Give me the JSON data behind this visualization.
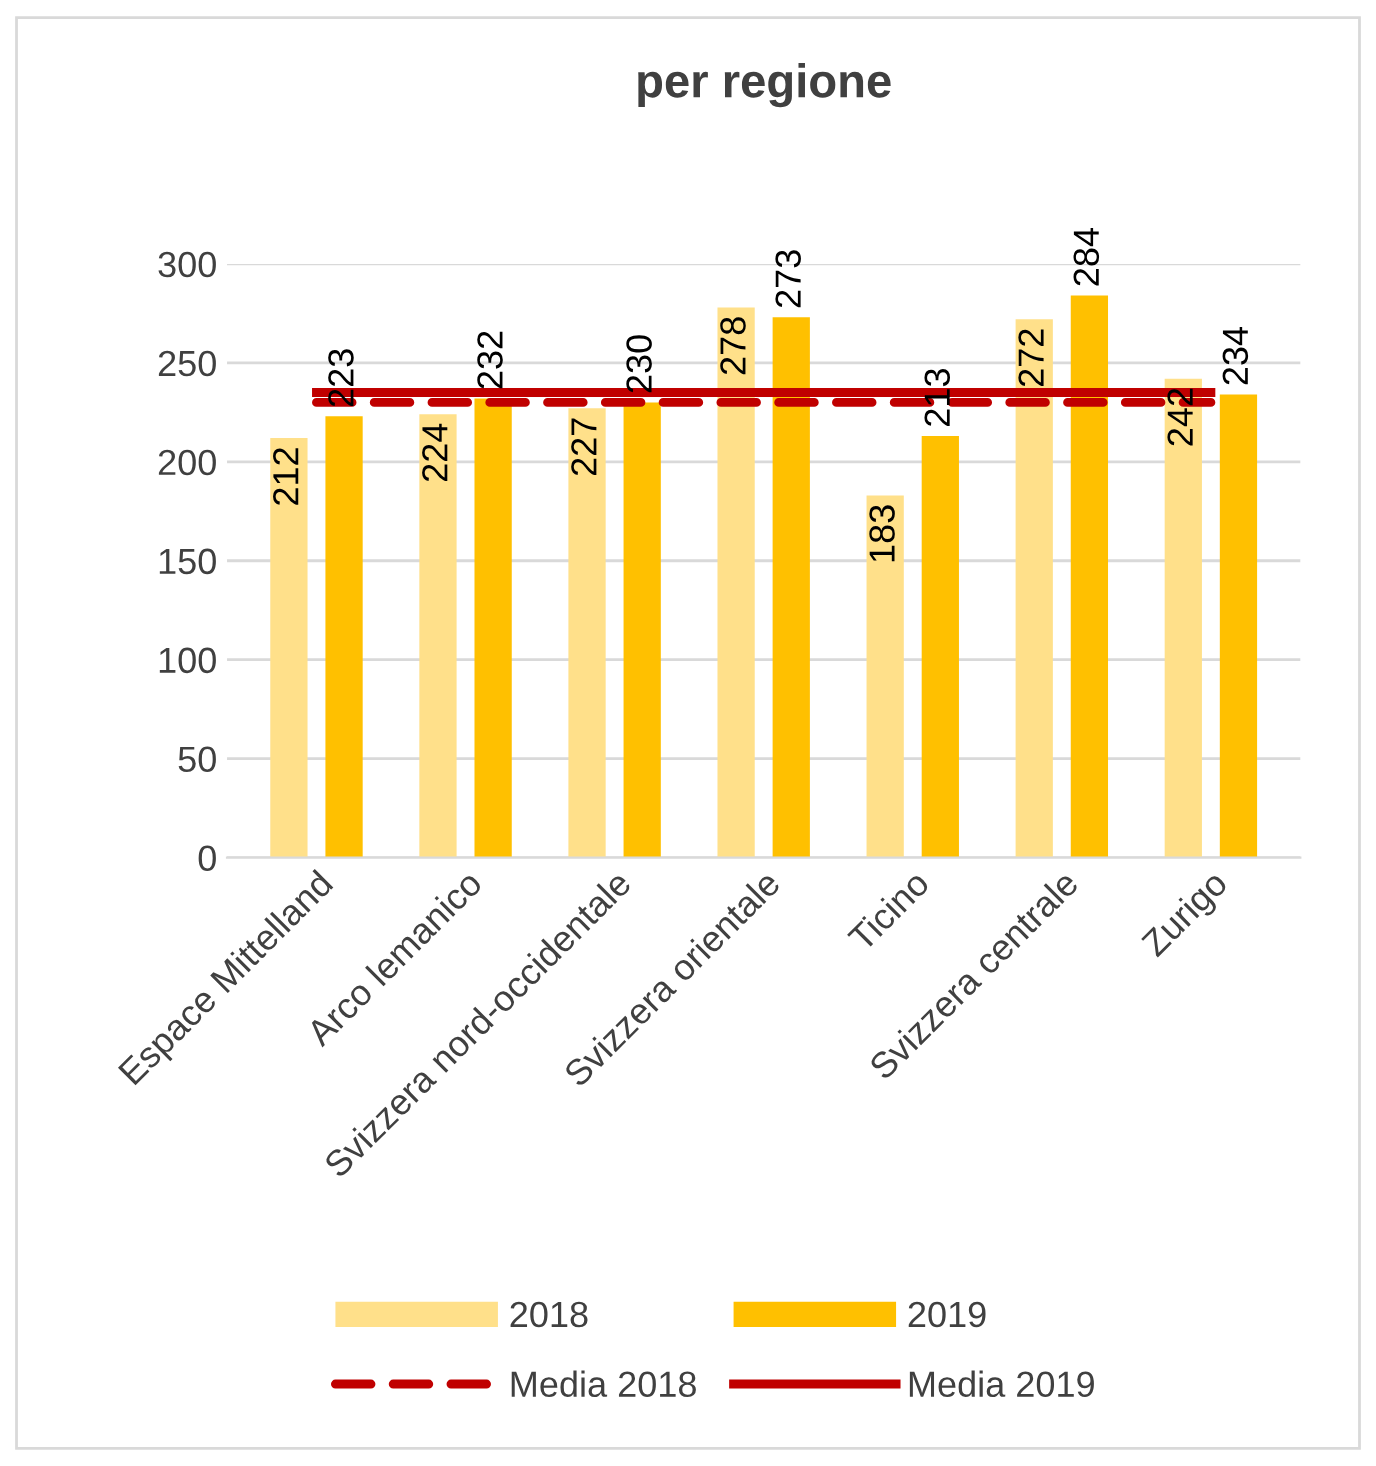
{
  "chart_data": {
    "type": "bar",
    "title": "per regione",
    "categories": [
      "Espace Mittelland",
      "Arco lemanico",
      "Svizzera nord-occidentale",
      "Svizzera orientale",
      "Ticino",
      "Svizzera centrale",
      "Zurigo"
    ],
    "series": [
      {
        "name": "2018",
        "color": "#ffe08a",
        "values": [
          212,
          224,
          227,
          278,
          183,
          272,
          242
        ],
        "value_labels": [
          "212",
          "224",
          "227",
          "278",
          "183",
          "272",
          "242"
        ]
      },
      {
        "name": "2019",
        "color": "#ffc000",
        "values": [
          223,
          232,
          230,
          273,
          213,
          284,
          234
        ],
        "value_labels": [
          "223",
          "232",
          "230",
          "273",
          "213",
          "284",
          "234"
        ]
      },
      {
        "name": "Media 2018",
        "type": "line",
        "color": "#c00000",
        "line_style": "dashed",
        "values": [
          230,
          230,
          230,
          230,
          230,
          230,
          230
        ]
      },
      {
        "name": "Media 2019",
        "type": "line",
        "color": "#c00000",
        "line_style": "solid",
        "values": [
          235,
          235,
          235,
          235,
          235,
          235,
          235
        ]
      }
    ],
    "ylim": [
      0,
      300
    ],
    "yticks": [
      0,
      50,
      100,
      150,
      200,
      250,
      300
    ],
    "grid": "y",
    "legend": "bottom"
  }
}
